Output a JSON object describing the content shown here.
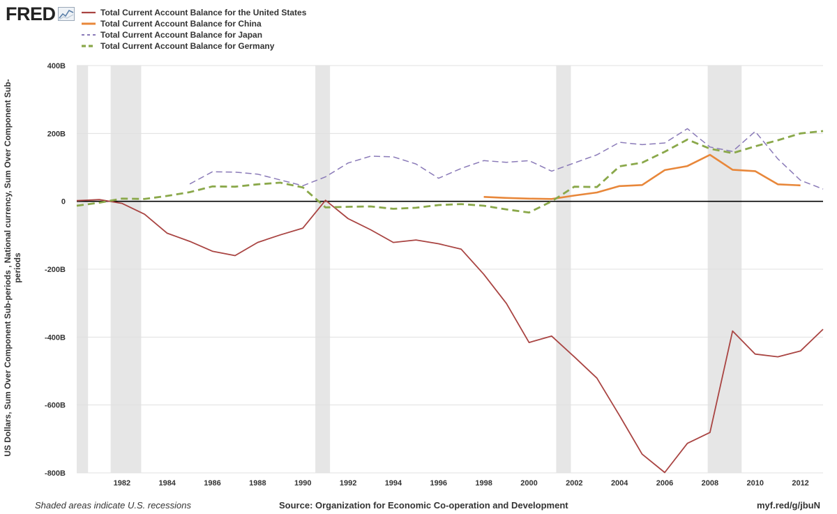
{
  "branding": {
    "logo_text": "FRED",
    "logo_icon": "line-chart-icon"
  },
  "colors": {
    "us": "#a94442",
    "china": "#e8873a",
    "japan": "#8a7ab8",
    "germany": "#8aa84a",
    "recession": "#e6e6e6",
    "zero_line": "#000000",
    "grid": "#e0e0e0"
  },
  "footer": {
    "recession_note": "Shaded areas indicate U.S. recessions",
    "source": "Source: Organization for Economic Co-operation and Development",
    "link": "myf.red/g/jbuN"
  },
  "chart_data": {
    "type": "line",
    "title": "",
    "xlabel": "",
    "ylabel": "US Dollars, Sum Over Component Sub-periods , National currency, Sum Over Component Sub-periods",
    "xlim": [
      1980,
      2013
    ],
    "ylim": [
      -800,
      400
    ],
    "y_ticks": [
      400,
      200,
      0,
      -200,
      -400,
      -600,
      -800
    ],
    "y_tick_labels": [
      "400B",
      "200B",
      "0",
      "-200B",
      "-400B",
      "-600B",
      "-800B"
    ],
    "x_ticks": [
      1982,
      1984,
      1986,
      1988,
      1990,
      1992,
      1994,
      1996,
      1998,
      2000,
      2002,
      2004,
      2006,
      2008,
      2010,
      2012
    ],
    "x_tick_labels": [
      "1982",
      "1984",
      "1986",
      "1988",
      "1990",
      "1992",
      "1994",
      "1996",
      "1998",
      "2000",
      "2002",
      "2004",
      "2006",
      "2008",
      "2010",
      "2012"
    ],
    "legend_position": "top-left",
    "recessions": [
      [
        1980.0,
        1980.5
      ],
      [
        1981.5,
        1982.85
      ],
      [
        1990.55,
        1991.2
      ],
      [
        2001.2,
        2001.85
      ],
      [
        2007.9,
        2009.4
      ]
    ],
    "series": [
      {
        "name": "Total Current Account Balance for the United States",
        "key": "us",
        "style": "solid",
        "x": [
          1980,
          1981,
          1982,
          1983,
          1984,
          1985,
          1986,
          1987,
          1988,
          1989,
          1990,
          1991,
          1992,
          1993,
          1994,
          1995,
          1996,
          1997,
          1998,
          1999,
          2000,
          2001,
          2002,
          2003,
          2004,
          2005,
          2006,
          2007,
          2008,
          2009,
          2010,
          2011,
          2012,
          2013
        ],
        "values": [
          2,
          5,
          -6,
          -38,
          -94,
          -118,
          -147,
          -160,
          -121,
          -99,
          -79,
          3,
          -51,
          -84,
          -121,
          -114,
          -125,
          -141,
          -215,
          -301,
          -416,
          -397,
          -458,
          -521,
          -631,
          -745,
          -799,
          -713,
          -681,
          -382,
          -450,
          -458,
          -441,
          -377
        ]
      },
      {
        "name": "Total Current Account Balance for China",
        "key": "china",
        "style": "solid-thick",
        "x": [
          1998,
          1999,
          2000,
          2001,
          2002,
          2003,
          2004,
          2005,
          2006,
          2007,
          2008,
          2009,
          2010,
          2011,
          2012
        ],
        "values": [
          13,
          10,
          8,
          7,
          17,
          26,
          45,
          48,
          92,
          104,
          137,
          93,
          89,
          50,
          47
        ]
      },
      {
        "name": "Total Current Account Balance for Japan",
        "key": "japan",
        "style": "dashed",
        "x": [
          1985,
          1986,
          1987,
          1988,
          1989,
          1990,
          1991,
          1992,
          1993,
          1994,
          1995,
          1996,
          1997,
          1998,
          1999,
          2000,
          2001,
          2002,
          2003,
          2004,
          2005,
          2006,
          2007,
          2008,
          2009,
          2010,
          2011,
          2012,
          2013
        ],
        "values": [
          51,
          87,
          86,
          80,
          63,
          46,
          72,
          113,
          133,
          131,
          110,
          68,
          97,
          120,
          115,
          120,
          89,
          113,
          137,
          174,
          167,
          172,
          214,
          160,
          147,
          206,
          125,
          62,
          36
        ]
      },
      {
        "name": "Total Current Account Balance for Germany",
        "key": "germany",
        "style": "dashed-thick",
        "x": [
          1980,
          1981,
          1982,
          1983,
          1984,
          1985,
          1986,
          1987,
          1988,
          1989,
          1990,
          1991,
          1992,
          1993,
          1994,
          1995,
          1996,
          1997,
          1998,
          1999,
          2000,
          2001,
          2002,
          2003,
          2004,
          2005,
          2006,
          2007,
          2008,
          2009,
          2010,
          2011,
          2012,
          2013
        ],
        "values": [
          -13,
          -4,
          8,
          7,
          16,
          27,
          44,
          43,
          50,
          55,
          41,
          -18,
          -16,
          -15,
          -22,
          -19,
          -11,
          -8,
          -13,
          -24,
          -33,
          0,
          43,
          42,
          103,
          114,
          146,
          182,
          155,
          142,
          162,
          180,
          200,
          207
        ]
      }
    ]
  }
}
